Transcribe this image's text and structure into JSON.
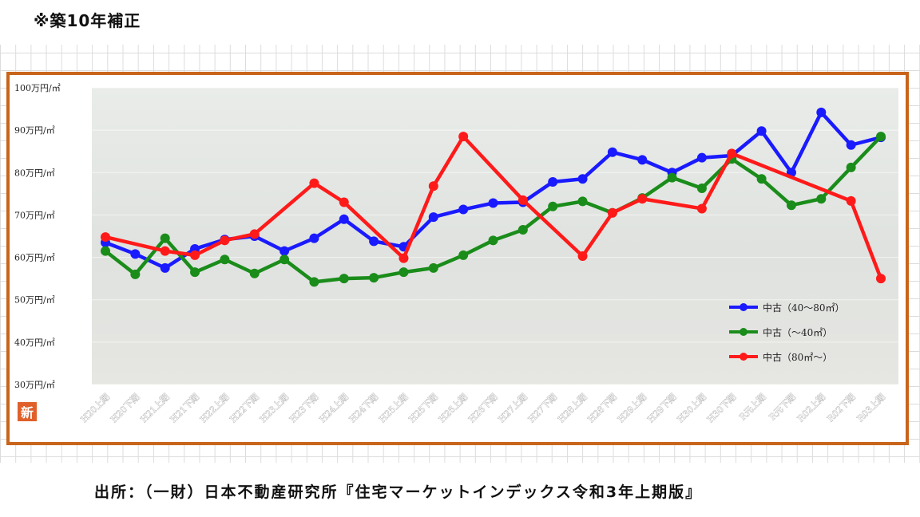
{
  "note": "※築10年補正",
  "source": "出所：（一財）日本不動産研究所『住宅マーケットインデックス令和3年上期版』",
  "logo_glyph": "新",
  "chart_data": {
    "type": "line",
    "categories": [
      "H20上期",
      "H20下期",
      "H21上期",
      "H21下期",
      "H22上期",
      "H22下期",
      "H23上期",
      "H23下期",
      "H24上期",
      "H24下期",
      "H25上期",
      "H25下期",
      "H26上期",
      "H26下期",
      "H27上期",
      "H27下期",
      "H28上期",
      "H28下期",
      "H29上期",
      "H29下期",
      "H30上期",
      "H30下期",
      "R元上期",
      "R元下期",
      "R02上期",
      "R02下期",
      "R03上期"
    ],
    "ylim": [
      30,
      100
    ],
    "yticks": [
      30,
      40,
      50,
      60,
      70,
      80,
      90,
      100
    ],
    "ytick_labels": [
      "30万円/㎡",
      "40万円/㎡",
      "50万円/㎡",
      "60万円/㎡",
      "70万円/㎡",
      "80万円/㎡",
      "90万円/㎡",
      "100万円/㎡"
    ],
    "legend_position": "bottom-right",
    "series": [
      {
        "name": "中古（40～80㎡）",
        "color": "#1a1aff",
        "values": [
          63.5,
          60.8,
          57.5,
          62,
          64.2,
          65,
          61.5,
          64.5,
          69,
          63.8,
          62.5,
          69.5,
          71.3,
          72.8,
          73,
          77.8,
          78.5,
          84.8,
          83,
          80,
          83.5,
          84,
          89.8,
          80,
          94.2,
          86.5,
          88.3
        ]
      },
      {
        "name": "中古（～40㎡）",
        "color": "#1a8c1a",
        "values": [
          61.5,
          56,
          64.5,
          56.5,
          59.5,
          56.2,
          59.5,
          54.2,
          55,
          55.2,
          56.5,
          57.5,
          60.5,
          64,
          66.5,
          72,
          73.2,
          70.5,
          74,
          78.8,
          76.3,
          83.2,
          78.5,
          72.3,
          73.8,
          81.2,
          88.5
        ]
      },
      {
        "name": "中古（80㎡～）",
        "color": "#ff1a1a",
        "values": [
          64.8,
          null,
          61.5,
          60.5,
          64,
          65.5,
          null,
          77.5,
          73,
          null,
          59.8,
          76.8,
          88.5,
          null,
          73.5,
          null,
          60.3,
          70.5,
          73.8,
          null,
          71.5,
          84.5,
          null,
          null,
          null,
          73.3,
          55
        ]
      }
    ]
  }
}
